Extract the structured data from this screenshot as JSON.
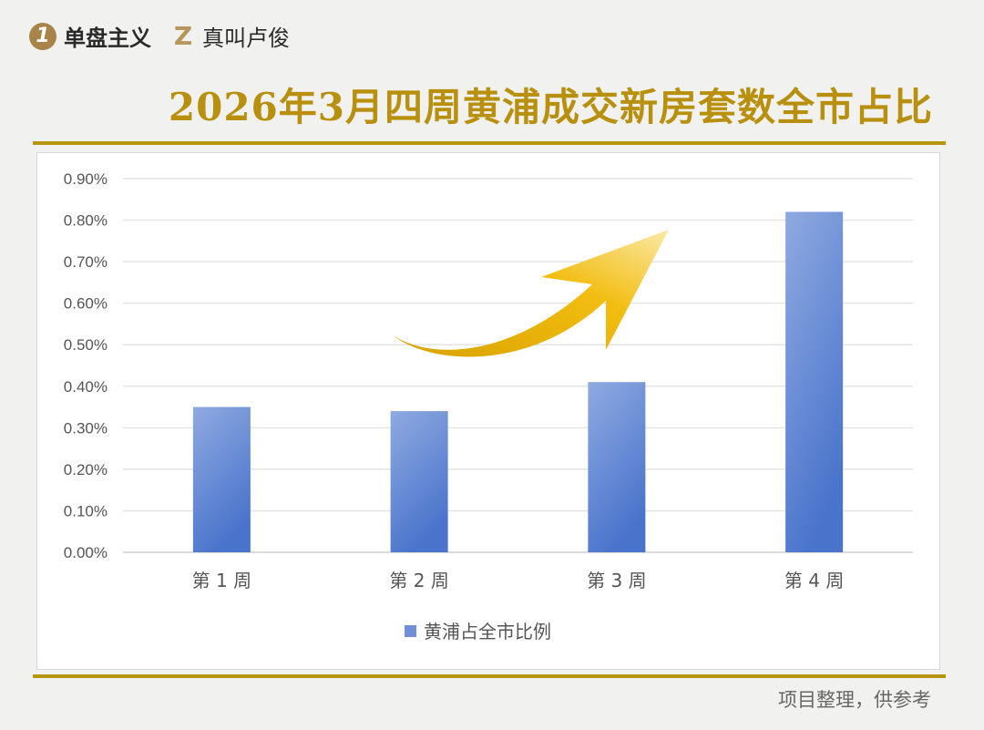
{
  "brand": {
    "logo1_glyph": "1",
    "name1": "单盘主义",
    "logo2_glyph": "Z",
    "name2": "真叫卢俊"
  },
  "title": "2026年3月四周黄浦成交新房套数全市占比",
  "footer": "项目整理，供参考",
  "colors": {
    "gold": "#b8900e",
    "bar_top": "#8faae0",
    "bar_bottom": "#4a74cc",
    "arrow": "#f0b800"
  },
  "chart_data": {
    "type": "bar",
    "categories": [
      "第 1 周",
      "第 2 周",
      "第 3 周",
      "第 4 周"
    ],
    "series": [
      {
        "name": "黄浦占全市比例",
        "values": [
          0.35,
          0.34,
          0.41,
          0.82
        ]
      }
    ],
    "yticks": [
      "0.00%",
      "0.10%",
      "0.20%",
      "0.30%",
      "0.40%",
      "0.50%",
      "0.60%",
      "0.70%",
      "0.80%",
      "0.90%"
    ],
    "ylim": [
      0,
      0.9
    ],
    "yunit": "%",
    "grid": true,
    "legend": "bottom",
    "annotation": "upward-arrow"
  }
}
